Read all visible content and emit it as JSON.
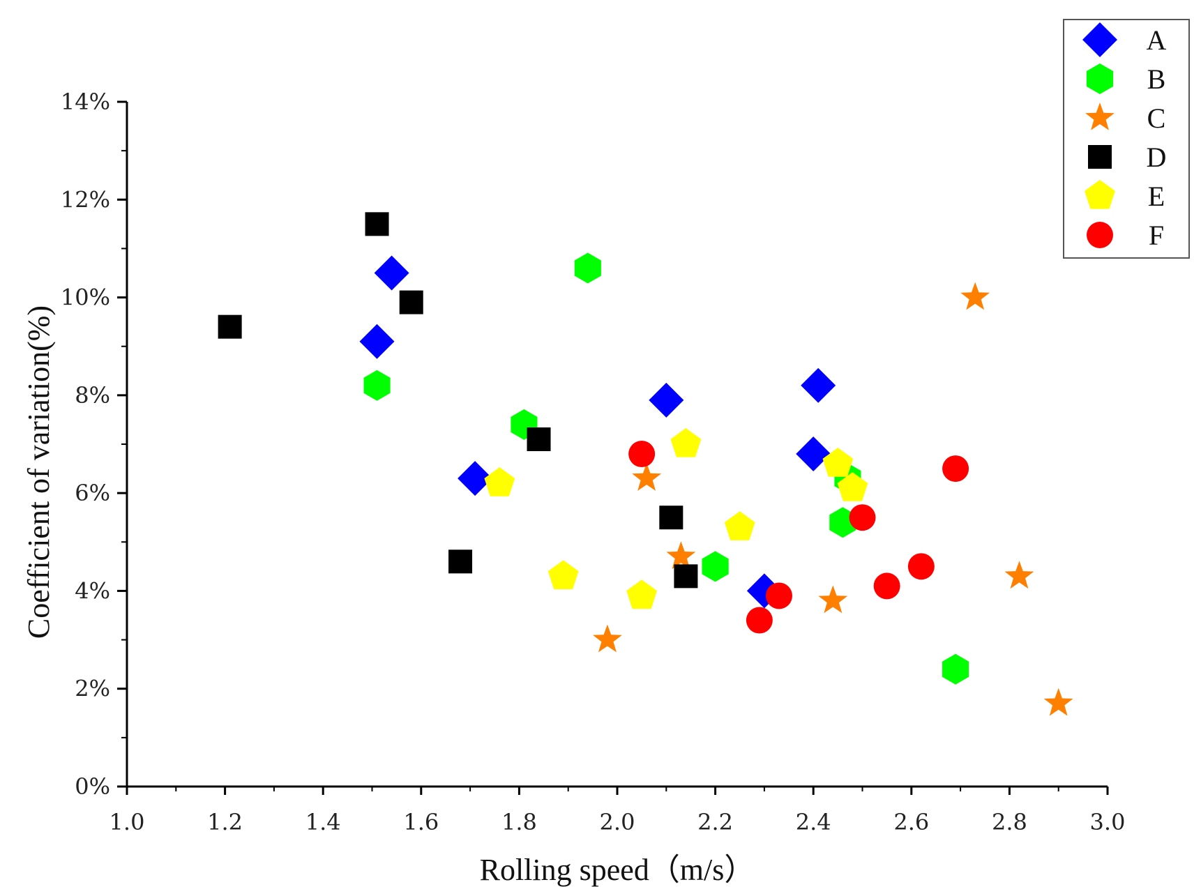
{
  "chart_data": {
    "type": "scatter",
    "xlabel": "Rolling speed（m/s）",
    "ylabel": "Coefficient of variation(%)",
    "xlim": [
      1.0,
      3.0
    ],
    "ylim": [
      0,
      14
    ],
    "x_ticks": [
      1.0,
      1.2,
      1.4,
      1.6,
      1.8,
      2.0,
      2.2,
      2.4,
      2.6,
      2.8,
      3.0
    ],
    "x_tick_labels": [
      "1.0",
      "1.2",
      "1.4",
      "1.6",
      "1.8",
      "2.0",
      "2.2",
      "2.4",
      "2.6",
      "2.8",
      "3.0"
    ],
    "y_ticks": [
      0,
      2,
      4,
      6,
      8,
      10,
      12,
      14
    ],
    "y_tick_labels": [
      "0%",
      "2%",
      "4%",
      "6%",
      "8%",
      "10%",
      "12%",
      "14%"
    ],
    "grid": false,
    "legend_position": "top-right",
    "series": [
      {
        "name": "A",
        "marker": "diamond",
        "color": "#0000ff",
        "x": [
          1.51,
          1.54,
          1.71,
          2.1,
          2.3,
          2.4,
          2.41
        ],
        "y": [
          9.1,
          10.5,
          6.3,
          7.9,
          4.0,
          6.8,
          8.2
        ]
      },
      {
        "name": "B",
        "marker": "hexagon",
        "color": "#00ff00",
        "x": [
          1.51,
          1.81,
          1.94,
          2.2,
          2.46,
          2.47,
          2.69
        ],
        "y": [
          8.2,
          7.4,
          10.6,
          4.5,
          5.4,
          6.3,
          2.4
        ]
      },
      {
        "name": "C",
        "marker": "star",
        "color": "#ff8000",
        "x": [
          1.98,
          2.06,
          2.13,
          2.44,
          2.73,
          2.82,
          2.9
        ],
        "y": [
          3.0,
          6.3,
          4.7,
          3.8,
          10.0,
          4.3,
          1.7
        ]
      },
      {
        "name": "D",
        "marker": "square",
        "color": "#000000",
        "x": [
          1.21,
          1.51,
          1.58,
          1.68,
          1.84,
          2.11,
          2.14
        ],
        "y": [
          9.4,
          11.5,
          9.9,
          4.6,
          7.1,
          5.5,
          4.3
        ]
      },
      {
        "name": "E",
        "marker": "pentagon",
        "color": "#ffff00",
        "x": [
          1.76,
          1.89,
          2.05,
          2.14,
          2.25,
          2.45,
          2.48
        ],
        "y": [
          6.2,
          4.3,
          3.9,
          7.0,
          5.3,
          6.6,
          6.1
        ]
      },
      {
        "name": "F",
        "marker": "circle",
        "color": "#ff0000",
        "x": [
          2.05,
          2.29,
          2.33,
          2.5,
          2.55,
          2.62,
          2.69
        ],
        "y": [
          6.8,
          3.4,
          3.9,
          5.5,
          4.1,
          4.5,
          6.5
        ]
      }
    ]
  }
}
